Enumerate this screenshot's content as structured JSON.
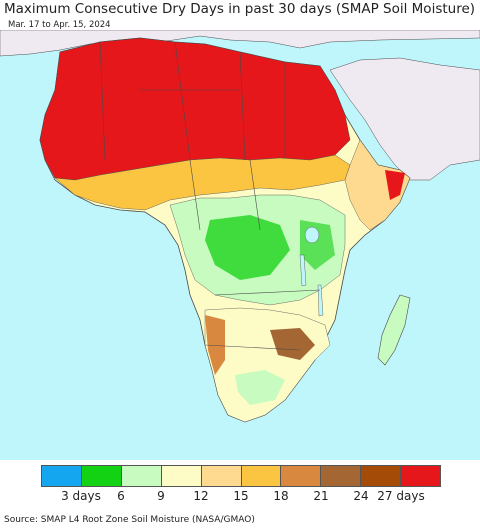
{
  "title": "Maximum Consecutive Dry Days in past 30 days (SMAP Soil Moisture)",
  "subtitle": "Mar. 17 to Apr. 15, 2024",
  "footer": "Source: SMAP L4 Root Zone Soil Moisture (NASA/GMAO)",
  "colors": {
    "ocean": "#bff6fb",
    "non_africa_land": "#efeaf1",
    "border": "#4a4a4a"
  },
  "legend": {
    "colors": [
      "#14a7f0",
      "#13d113",
      "#c8fbc0",
      "#fdfbc6",
      "#fdda8f",
      "#fbc441",
      "#d98840",
      "#a46733",
      "#a54b08",
      "#e5171b"
    ],
    "tick_labels": [
      "3 days",
      "6",
      "9",
      "12",
      "15",
      "18",
      "21",
      "24",
      "27 days"
    ]
  }
}
